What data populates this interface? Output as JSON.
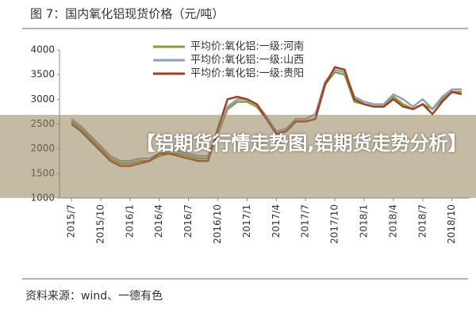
{
  "chart_data": {
    "type": "line",
    "title": "图 7：国内氧化铝现货价格（元/吨）",
    "source": "资料来源：wind、一德有色",
    "categories": [
      "2015/7",
      null,
      null,
      "2015/10",
      null,
      null,
      "2016/1",
      null,
      null,
      "2016/4",
      null,
      null,
      "2016/7",
      null,
      null,
      "2016/10",
      null,
      null,
      "2017/1",
      null,
      null,
      "2017/4",
      null,
      null,
      "2017/7",
      null,
      null,
      "2017/10",
      null,
      null,
      "2018/1",
      null,
      null,
      "2018/4",
      null,
      null,
      "2018/7",
      null,
      null,
      "2018/10",
      null
    ],
    "series": [
      {
        "name": "平均价:氧化铝:一级:河南",
        "color": "#8a9a3c",
        "values": [
          2550,
          2400,
          2200,
          2000,
          1800,
          1700,
          1700,
          1750,
          1750,
          1850,
          1900,
          1900,
          1850,
          1800,
          1800,
          2300,
          2800,
          2950,
          2950,
          2850,
          2600,
          2300,
          2350,
          2550,
          2550,
          2600,
          3300,
          3550,
          3500,
          2950,
          2900,
          2850,
          2850,
          3050,
          2900,
          2800,
          2900,
          2800,
          3000,
          3150,
          3150
        ]
      },
      {
        "name": "平均价:氧化铝:一级:山西",
        "color": "#8fa0b4",
        "values": [
          2600,
          2450,
          2250,
          2050,
          1850,
          1750,
          1750,
          1800,
          1800,
          1900,
          1950,
          1950,
          1900,
          1850,
          1850,
          2350,
          2850,
          3000,
          3000,
          2900,
          2650,
          2350,
          2400,
          2600,
          2600,
          2700,
          3350,
          3600,
          3550,
          3050,
          2950,
          2900,
          2900,
          3100,
          3000,
          2850,
          3000,
          2800,
          3050,
          3200,
          3200
        ]
      },
      {
        "name": "平均价:氧化铝:一级:贵阳",
        "color": "#a0401e",
        "values": [
          2500,
          2350,
          2150,
          1950,
          1750,
          1650,
          1650,
          1700,
          1750,
          1900,
          1900,
          1850,
          1800,
          1750,
          1750,
          2400,
          3000,
          3050,
          3000,
          2900,
          2600,
          2300,
          2350,
          2550,
          2550,
          2600,
          3300,
          3650,
          3600,
          3000,
          2900,
          2850,
          2850,
          3000,
          2850,
          2800,
          2900,
          2700,
          2950,
          3150,
          3100
        ]
      }
    ],
    "ylim": [
      1000,
      4000
    ],
    "yticks": [
      1000,
      1500,
      2000,
      2500,
      3000,
      3500,
      4000
    ],
    "grid": false
  },
  "overlay": {
    "text": "【铝期货行情走势图,铝期货走势分析】"
  }
}
